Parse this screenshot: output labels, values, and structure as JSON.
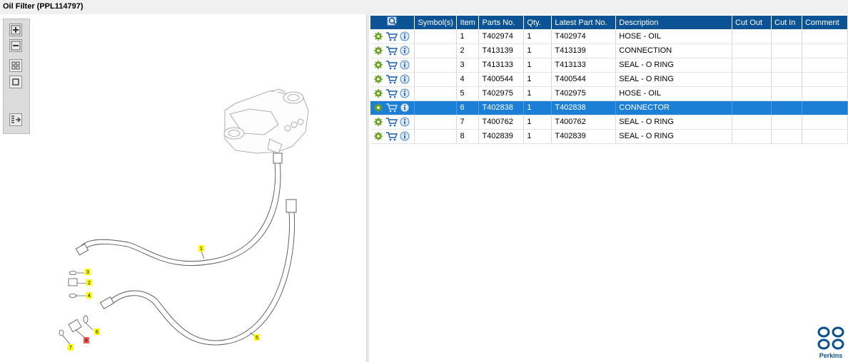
{
  "window": {
    "title": "Oil Filter (PPL114797)"
  },
  "toolbar": {
    "buttons": [
      {
        "name": "zoom-in-button",
        "icon": "zoom-in-icon"
      },
      {
        "name": "zoom-out-button",
        "icon": "zoom-out-icon"
      },
      {
        "name": "fit-all-button",
        "icon": "fit-all-icon"
      },
      {
        "name": "actual-size-button",
        "icon": "actual-size-icon"
      },
      {
        "name": "parts-list-toggle-button",
        "icon": "list-arrow-icon"
      }
    ]
  },
  "drawing": {
    "callouts": [
      {
        "label": "1",
        "highlight": "#ffff00"
      },
      {
        "label": "2",
        "highlight": "#ffff00"
      },
      {
        "label": "3",
        "highlight": "#ffff00"
      },
      {
        "label": "4",
        "highlight": "#ffff00"
      },
      {
        "label": "5",
        "highlight": "#ffff00"
      },
      {
        "label": "6",
        "highlight": "#ffff00"
      },
      {
        "label": "7",
        "highlight": "#ffff00"
      },
      {
        "label": "8",
        "highlight": "#ff5a5a"
      }
    ]
  },
  "table": {
    "header_icon": "search-icon",
    "columns": [
      "Symbol(s)",
      "Item",
      "Parts No.",
      "Qty.",
      "Latest Part No.",
      "Description",
      "Cut Out",
      "Cut In",
      "Comment"
    ],
    "rows": [
      {
        "item": "1",
        "part_no": "T402974",
        "qty": "1",
        "latest": "T402974",
        "description": "HOSE - OIL",
        "selected": false
      },
      {
        "item": "2",
        "part_no": "T413139",
        "qty": "1",
        "latest": "T413139",
        "description": "CONNECTION",
        "selected": false
      },
      {
        "item": "3",
        "part_no": "T413133",
        "qty": "1",
        "latest": "T413133",
        "description": "SEAL - O RING",
        "selected": false
      },
      {
        "item": "4",
        "part_no": "T400544",
        "qty": "1",
        "latest": "T400544",
        "description": "SEAL - O RING",
        "selected": false
      },
      {
        "item": "5",
        "part_no": "T402975",
        "qty": "1",
        "latest": "T402975",
        "description": "HOSE - OIL",
        "selected": false
      },
      {
        "item": "6",
        "part_no": "T402838",
        "qty": "1",
        "latest": "T402838",
        "description": "CONNECTOR",
        "selected": true
      },
      {
        "item": "7",
        "part_no": "T400762",
        "qty": "1",
        "latest": "T400762",
        "description": "SEAL - O RING",
        "selected": false
      },
      {
        "item": "8",
        "part_no": "T402839",
        "qty": "1",
        "latest": "T402839",
        "description": "SEAL - O RING",
        "selected": false
      }
    ],
    "row_icons": [
      "gear-icon",
      "cart-icon",
      "info-icon"
    ],
    "colors": {
      "header": "#0b5394",
      "selected": "#1c7fd6",
      "gear": "#6aa121"
    }
  },
  "brand": {
    "name": "Perkins",
    "color": "#0b4f8f"
  }
}
